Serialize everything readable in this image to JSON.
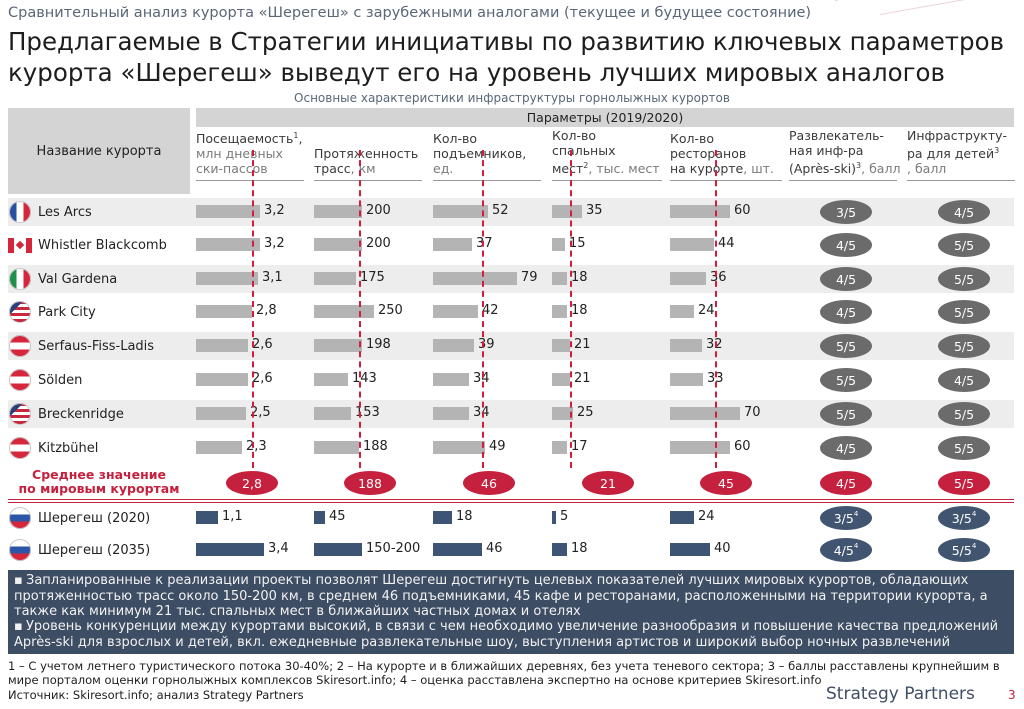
{
  "slide": {
    "subtitle": "Сравнительный анализ курорта «Шерегеш» с зарубежными аналогами (текущее и будущее состояние)",
    "title_line1": "Предлагаемые в Стратегии инициативы по развитию ключевых параметров",
    "title_line2": "курорта «Шерегеш» выведут его на уровень лучших мировых аналогов",
    "table_caption": "Основные характеристики инфраструктуры горнолыжных курортов",
    "brand": "Strategy Partners",
    "page_number": "3",
    "accent_color": "#c5213e",
    "navy_color": "#3d4d64"
  },
  "table_header": {
    "name_col": "Название курорта",
    "params_group": "Параметры (2019/2020)"
  },
  "columns": [
    {
      "key": "visits",
      "line1": "Посещаемость",
      "sup": "1",
      "line2": ",",
      "unit1": "млн дневных",
      "unit2": "ски-пассов"
    },
    {
      "key": "slopes",
      "line1": "Протяженность",
      "line2": "трасс",
      "unit": ", км"
    },
    {
      "key": "lifts",
      "line1": "Кол-во",
      "line2": "подъемников,",
      "unit": "ед."
    },
    {
      "key": "beds",
      "line1": "Кол-во",
      "line2": "спальных",
      "line3": "мест",
      "sup": "2",
      "unit": ", тыс. мест"
    },
    {
      "key": "restaurants",
      "line1": "Кол-во",
      "line2": "ресторанов",
      "line3": "на курорте",
      "unit": ", шт."
    },
    {
      "key": "apres",
      "line1": "Развлекатель-",
      "line2": "ная инф-ра",
      "line3": "(Après-ski)",
      "sup": "3",
      "unit": ", балл"
    },
    {
      "key": "kids",
      "line1": "Инфраструкту-",
      "line2": "ра для детей",
      "sup": "3",
      "unit": ", балл"
    }
  ],
  "rows": [
    {
      "name": "Les Arcs",
      "flag": "france-flag",
      "values": [
        "3,2",
        "200",
        "52",
        "35",
        "60"
      ],
      "apres": "3/5",
      "kids": "4/5"
    },
    {
      "name": "Whistler Blackcomb",
      "flag": "canada-flag",
      "values": [
        "3,2",
        "200",
        "37",
        "15",
        "44"
      ],
      "apres": "4/5",
      "kids": "5/5"
    },
    {
      "name": "Val Gardena",
      "flag": "italy-flag",
      "values": [
        "3,1",
        "175",
        "79",
        "18",
        "36"
      ],
      "apres": "4/5",
      "kids": "5/5"
    },
    {
      "name": "Park City",
      "flag": "usa-flag",
      "values": [
        "2,8",
        "250",
        "42",
        "18",
        "24"
      ],
      "apres": "4/5",
      "kids": "5/5"
    },
    {
      "name": "Serfaus-Fiss-Ladis",
      "flag": "austria-flag",
      "values": [
        "2,6",
        "198",
        "39",
        "21",
        "32"
      ],
      "apres": "5/5",
      "kids": "5/5"
    },
    {
      "name": "Sölden",
      "flag": "austria-flag",
      "values": [
        "2,6",
        "143",
        "34",
        "21",
        "33"
      ],
      "apres": "5/5",
      "kids": "4/5"
    },
    {
      "name": "Breckenridge",
      "flag": "usa-flag",
      "values": [
        "2,5",
        "153",
        "34",
        "25",
        "70"
      ],
      "apres": "5/5",
      "kids": "5/5"
    },
    {
      "name": "Kitzbühel",
      "flag": "austria-flag",
      "values": [
        "2,3",
        "188",
        "49",
        "17",
        "60"
      ],
      "apres": "4/5",
      "kids": "5/5"
    }
  ],
  "average": {
    "label_line1": "Среднее значение",
    "label_line2": "по мировым курортам",
    "values": [
      "2,8",
      "188",
      "46",
      "21",
      "45"
    ],
    "apres": "4/5",
    "kids": "5/5"
  },
  "sheregesh": [
    {
      "name": "Шерегеш (2020)",
      "flag": "russia-flag",
      "values": [
        "1,1",
        "45",
        "18",
        "5",
        "24"
      ],
      "apres": "3/5",
      "apres_sup": "4",
      "kids": "3/5",
      "kids_sup": "4"
    },
    {
      "name": "Шерегеш (2035)",
      "flag": "russia-flag",
      "values": [
        "3,4",
        "150-200",
        "46",
        "18",
        "40"
      ],
      "apres": "4/5",
      "apres_sup": "4",
      "kids": "5/5",
      "kids_sup": "4"
    }
  ],
  "chart_data": {
    "type": "bar",
    "title": "Основные характеристики инфраструктуры горнолыжных курортов",
    "categories": [
      "Les Arcs",
      "Whistler Blackcomb",
      "Val Gardena",
      "Park City",
      "Serfaus-Fiss-Ladis",
      "Sölden",
      "Breckenridge",
      "Kitzbühel",
      "Среднее значение по мировым курортам",
      "Шерегеш (2020)",
      "Шерегеш (2035)"
    ],
    "series": [
      {
        "name": "Посещаемость, млн дневных ски-пассов",
        "values": [
          3.2,
          3.2,
          3.1,
          2.8,
          2.6,
          2.6,
          2.5,
          2.3,
          2.8,
          1.1,
          3.4
        ]
      },
      {
        "name": "Протяженность трасс, км",
        "values": [
          200,
          200,
          175,
          250,
          198,
          143,
          153,
          188,
          188,
          45,
          200
        ]
      },
      {
        "name": "Кол-во подъемников, ед.",
        "values": [
          52,
          37,
          79,
          42,
          39,
          34,
          34,
          49,
          46,
          18,
          46
        ]
      },
      {
        "name": "Кол-во спальных мест, тыс. мест",
        "values": [
          35,
          15,
          18,
          18,
          21,
          21,
          25,
          17,
          21,
          5,
          18
        ]
      },
      {
        "name": "Кол-во ресторанов на курорте, шт.",
        "values": [
          60,
          44,
          36,
          24,
          32,
          33,
          70,
          60,
          45,
          24,
          40
        ]
      }
    ],
    "scores": {
      "apres_ski": [
        "3/5",
        "4/5",
        "4/5",
        "4/5",
        "5/5",
        "5/5",
        "5/5",
        "4/5",
        "4/5",
        "3/5",
        "4/5"
      ],
      "kids": [
        "4/5",
        "5/5",
        "5/5",
        "5/5",
        "5/5",
        "4/5",
        "5/5",
        "5/5",
        "5/5",
        "3/5",
        "5/5"
      ]
    }
  },
  "notes": [
    "Запланированные к реализации проекты позволят Шерегеш достигнуть целевых показателей лучших мировых курортов, обладающих протяженностью трасс около 150-200 км, в среднем 46 подъемниками, 45 кафе и ресторанами, расположенными на территории курорта, а также как минимум 21 тыс. спальных мест в ближайших частных домах и отелях",
    "Уровень конкуренции между курортами высокий, в связи с чем необходимо увеличение разнообразия и повышение качества предложений Après-ski для взрослых и детей, вкл. ежедневные развлекательные шоу, выступления артистов и широкий выбор ночных развлечений"
  ],
  "footnote": "1 – С учетом летнего туристического потока 30-40%; 2 – На курорте и в ближайших деревнях, без учета теневого сектора; 3 – баллы расставлены крупнейшим в мире порталом оценки горнолыжных комплексов Skiresort.info; 4 – оценка расставлена экспертно на основе критериев Skiresort.info",
  "source": "Источник: Skiresort.info; анализ Strategy Partners"
}
